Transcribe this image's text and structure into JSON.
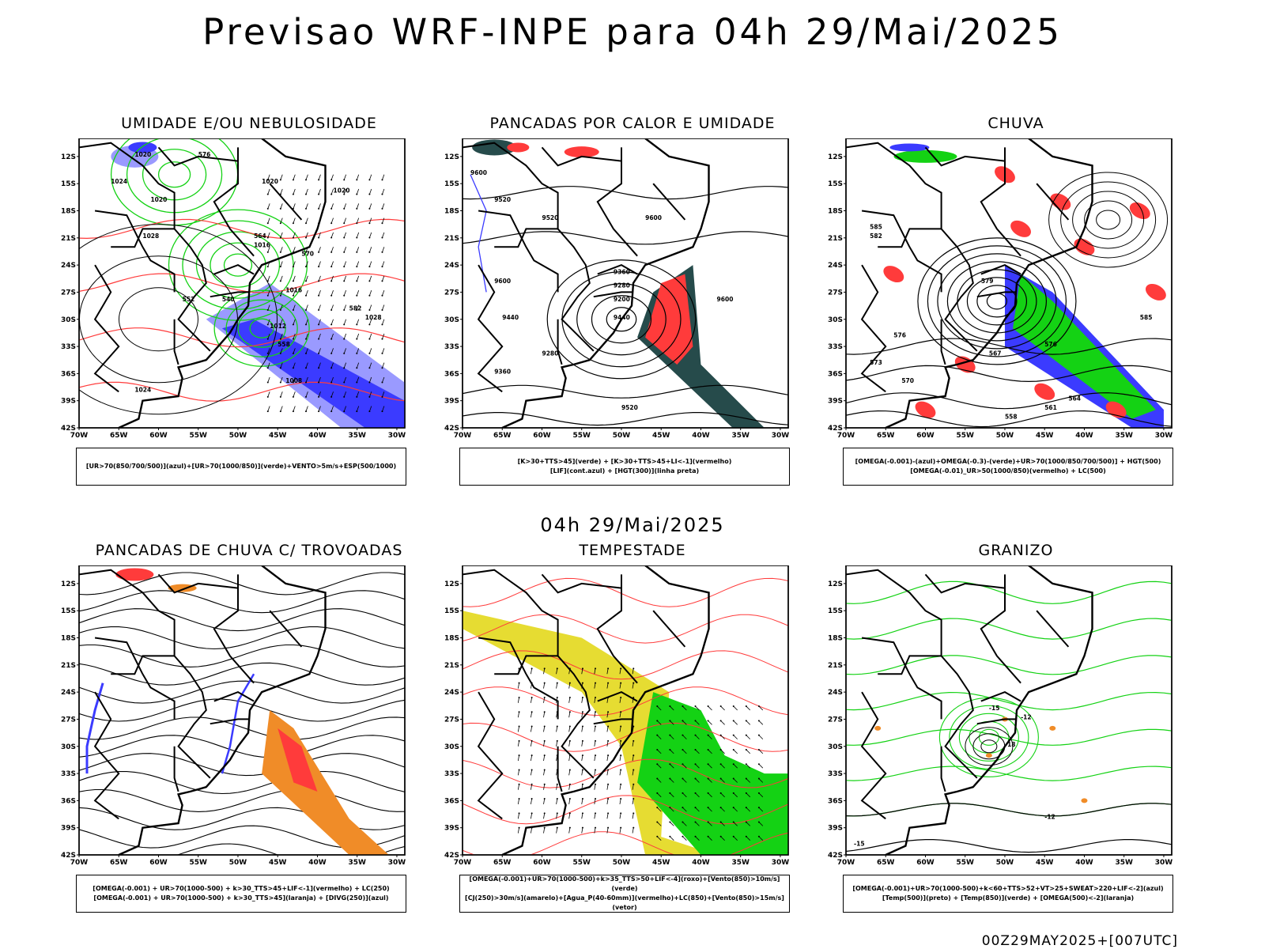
{
  "title": "Previsao WRF-INPE  para 04h 29/Mai/2025",
  "mid_date": "04h 29/Mai/2025",
  "footer": "00Z29MAY2025+[007UTC]",
  "axis": {
    "lat_labels": [
      "12S",
      "15S",
      "18S",
      "21S",
      "24S",
      "27S",
      "30S",
      "33S",
      "36S",
      "39S",
      "42S"
    ],
    "lon_labels": [
      "70W",
      "65W",
      "60W",
      "55W",
      "50W",
      "45W",
      "40W",
      "35W",
      "30W"
    ]
  },
  "colors": {
    "blue": "#3b3bff",
    "light_blue": "#9a9aff",
    "green": "#14d214",
    "red": "#ff3b3b",
    "orange": "#f08c28",
    "yellow": "#e6dc32",
    "dark_green": "#264b4b",
    "contour": "#000000"
  },
  "panels": [
    {
      "title": "UMIDADE E/OU NEBULOSIDADE",
      "legend": [
        "[UR>70(850/700/500)](azul)+[UR>70(1000/850)](verde)+VENTO>5m/s+ESP(500/1000)"
      ],
      "contour_labels": [
        "1020",
        "1024",
        "1020",
        "1028",
        "1016",
        "1012",
        "1016",
        "1020",
        "1024",
        "1008",
        "1020",
        "1028",
        "576",
        "564",
        "570",
        "552",
        "540",
        "558",
        "582"
      ]
    },
    {
      "title": "PANCADAS POR CALOR E UMIDADE",
      "legend": [
        "[K>30+TTS>45](verde) + [K>30+TTS>45+LI<-1](vermelho)",
        "[LIF](cont.azul) + [HGT(300)](linha preta)"
      ],
      "contour_labels": [
        "9600",
        "9520",
        "9600",
        "9600",
        "9520",
        "9440",
        "9360",
        "9280",
        "9200",
        "9440",
        "9360",
        "9280",
        "9600",
        "9520"
      ]
    },
    {
      "title": "CHUVA",
      "legend": [
        "[OMEGA(-0.001)-(azul)+OMEGA(-0.3)-(verde)+UR>70(1000/850/700/500)] + HGT(500)",
        "[OMEGA(-0.01)_UR>50(1000/850)(vermelho) + LC(500)"
      ],
      "contour_labels": [
        "585",
        "582",
        "576",
        "573",
        "570",
        "567",
        "564",
        "561",
        "558",
        "579",
        "585",
        "576"
      ]
    },
    {
      "title": "PANCADAS DE CHUVA C/ TROVOADAS",
      "legend": [
        "[OMEGA(-0.001) + UR>70(1000-500) + k>30_TTS>45+LIF<-1](vermelho) + LC(250)",
        "[OMEGA(-0.001) + UR>70(1000-500) + k>30_TTS>45](laranja) + [DIVG(250)](azul)"
      ],
      "contour_labels": []
    },
    {
      "title": "TEMPESTADE",
      "legend": [
        "[OMEGA(-0.001)+UR>70(1000-500)+k>35_TTS>50+LIF<-4](roxo)+[Vento(850)>10m/s](verde)",
        "[CJ(250)>30m/s](amarelo)+[Agua_P(40-60mm)](vermelho)+LC(850)+[Vento(850)>15m/s](vetor)"
      ],
      "contour_labels": []
    },
    {
      "title": "GRANIZO",
      "legend": [
        "[OMEGA(-0.001)+UR>70(1000-500)+k<60+TTS>52+VT>25+SWEAT>220+LIF<-2](azul)",
        "[Temp(500)](preto) + [Temp(850)](verde) + [OMEGA(500)<-2](laranja)"
      ],
      "contour_labels": [
        "-15",
        "-12",
        "-18",
        "-15",
        "-12"
      ]
    }
  ]
}
